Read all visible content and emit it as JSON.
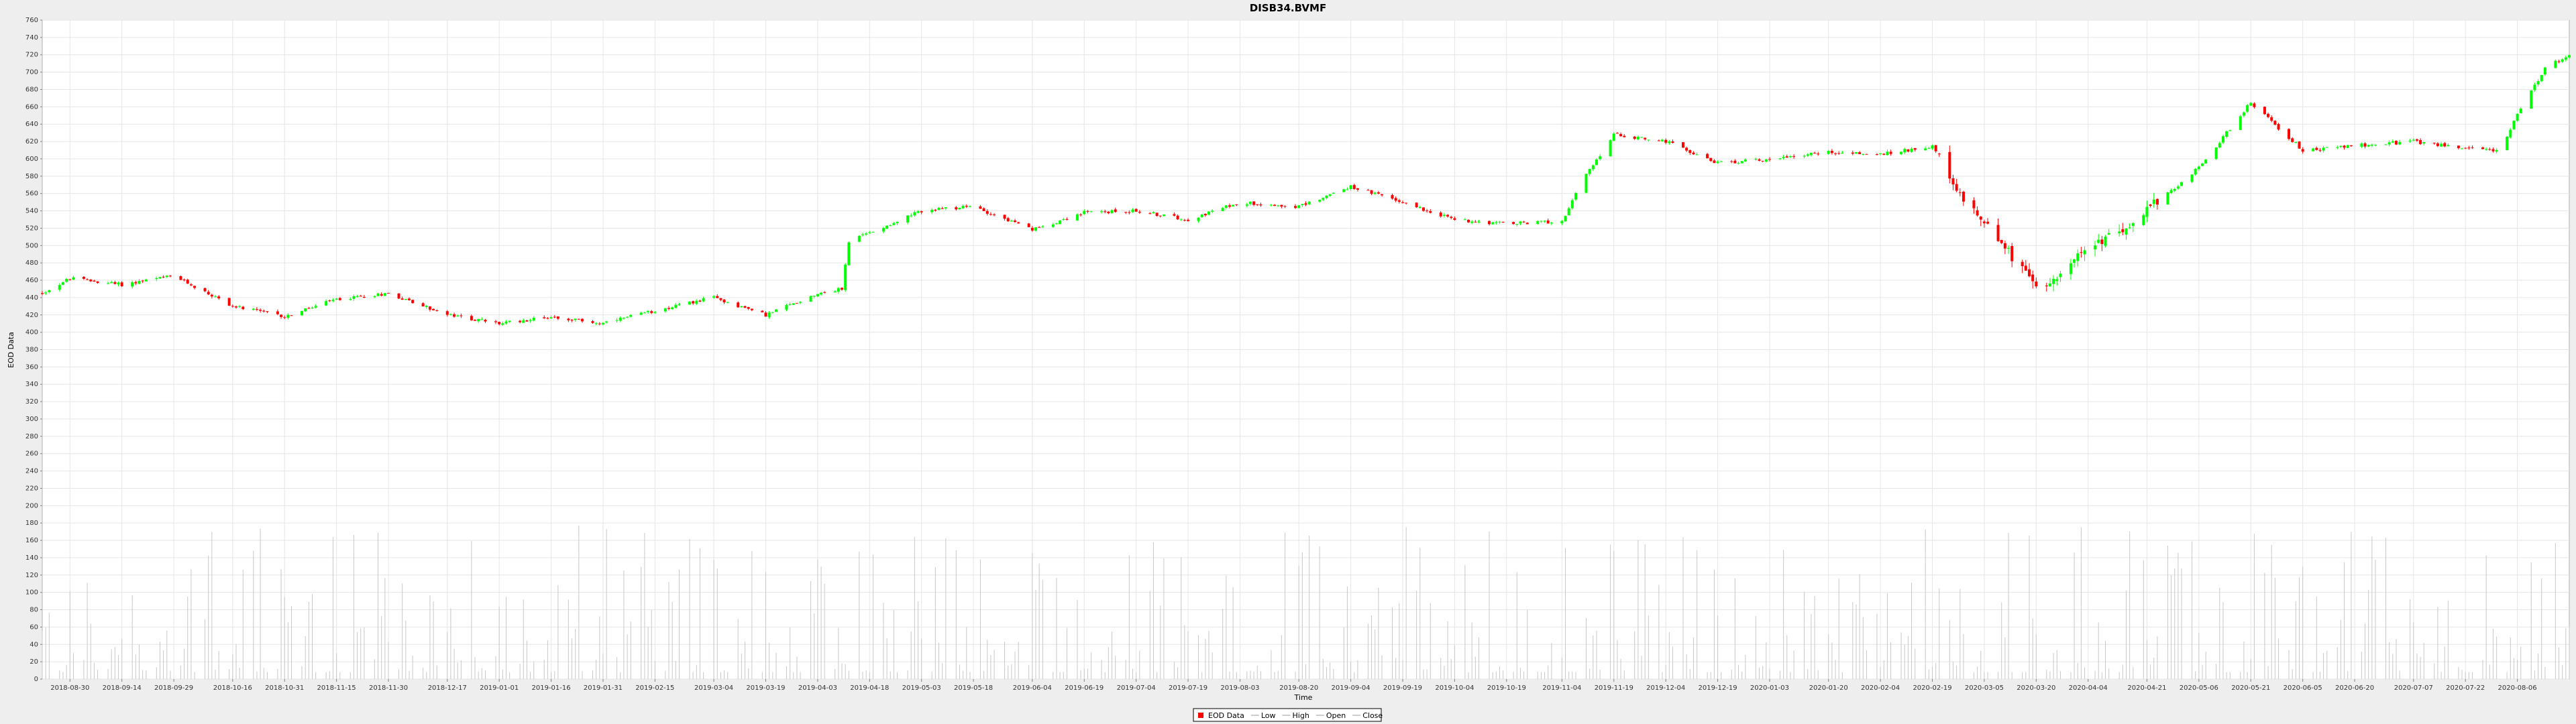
{
  "chart_data": {
    "type": "candlestick",
    "title": "DISB34.BVMF",
    "xlabel": "Time",
    "ylabel": "EOD Data",
    "ylim": [
      0,
      760
    ],
    "ytick_step": 20,
    "xlim": [
      "2018-08-22",
      "2020-08-21"
    ],
    "x_tick_labels": [
      "2018-08-30",
      "2018-09-14",
      "2018-09-29",
      "2018-10-16",
      "2018-10-31",
      "2018-11-15",
      "2018-11-30",
      "2018-12-17",
      "2019-01-01",
      "2019-01-16",
      "2019-01-31",
      "2019-02-15",
      "2019-03-04",
      "2019-03-19",
      "2019-04-03",
      "2019-04-18",
      "2019-05-03",
      "2019-05-18",
      "2019-06-04",
      "2019-06-19",
      "2019-07-04",
      "2019-07-19",
      "2019-08-03",
      "2019-08-20",
      "2019-09-04",
      "2019-09-19",
      "2019-10-04",
      "2019-10-19",
      "2019-11-04",
      "2019-11-19",
      "2019-12-04",
      "2019-12-19",
      "2020-01-03",
      "2020-01-20",
      "2020-02-04",
      "2020-02-19",
      "2020-03-05",
      "2020-03-20",
      "2020-04-04",
      "2020-04-21",
      "2020-05-06",
      "2020-05-21",
      "2020-06-05",
      "2020-06-20",
      "2020-07-07",
      "2020-07-22",
      "2020-08-06"
    ],
    "grid": true,
    "legend_position": "bottom-center",
    "legend": [
      "EOD Data",
      "Low",
      "High",
      "Open",
      "Close"
    ],
    "colors": {
      "up": "#00ff00",
      "down": "#ff0000",
      "volume": "#c8c8c8",
      "grid": "#e6e6e6",
      "plot_bg": "#ffffff",
      "page_bg": "#eeeeee",
      "legend_swatch": "#ff0000"
    },
    "series": [
      {
        "name": "EOD Data",
        "close_anchors": [
          [
            "2018-08-22",
            445
          ],
          [
            "2018-08-30",
            462
          ],
          [
            "2018-09-14",
            455
          ],
          [
            "2018-09-29",
            465
          ],
          [
            "2018-10-16",
            430
          ],
          [
            "2018-10-31",
            418
          ],
          [
            "2018-11-15",
            438
          ],
          [
            "2018-11-30",
            445
          ],
          [
            "2018-12-17",
            420
          ],
          [
            "2019-01-01",
            410
          ],
          [
            "2019-01-16",
            418
          ],
          [
            "2019-01-31",
            410
          ],
          [
            "2019-02-15",
            425
          ],
          [
            "2019-03-04",
            440
          ],
          [
            "2019-03-19",
            420
          ],
          [
            "2019-04-03",
            445
          ],
          [
            "2019-04-10",
            450
          ],
          [
            "2019-04-12",
            505
          ],
          [
            "2019-04-18",
            515
          ],
          [
            "2019-05-03",
            540
          ],
          [
            "2019-05-18",
            545
          ],
          [
            "2019-06-04",
            518
          ],
          [
            "2019-06-19",
            538
          ],
          [
            "2019-07-04",
            540
          ],
          [
            "2019-07-19",
            530
          ],
          [
            "2019-08-03",
            550
          ],
          [
            "2019-08-20",
            545
          ],
          [
            "2019-09-04",
            568
          ],
          [
            "2019-09-19",
            550
          ],
          [
            "2019-10-04",
            530
          ],
          [
            "2019-10-19",
            525
          ],
          [
            "2019-11-04",
            528
          ],
          [
            "2019-11-10",
            575
          ],
          [
            "2019-11-19",
            628
          ],
          [
            "2019-12-04",
            620
          ],
          [
            "2019-12-19",
            595
          ],
          [
            "2020-01-03",
            600
          ],
          [
            "2020-01-20",
            608
          ],
          [
            "2020-02-04",
            605
          ],
          [
            "2020-02-19",
            615
          ],
          [
            "2020-02-26",
            560
          ],
          [
            "2020-03-05",
            530
          ],
          [
            "2020-03-20",
            450
          ],
          [
            "2020-04-04",
            495
          ],
          [
            "2020-04-21",
            540
          ],
          [
            "2020-05-06",
            590
          ],
          [
            "2020-05-21",
            665
          ],
          [
            "2020-06-05",
            610
          ],
          [
            "2020-06-20",
            615
          ],
          [
            "2020-07-07",
            620
          ],
          [
            "2020-07-22",
            612
          ],
          [
            "2020-08-01",
            610
          ],
          [
            "2020-08-06",
            650
          ],
          [
            "2020-08-14",
            705
          ],
          [
            "2020-08-21",
            720
          ]
        ]
      }
    ]
  }
}
